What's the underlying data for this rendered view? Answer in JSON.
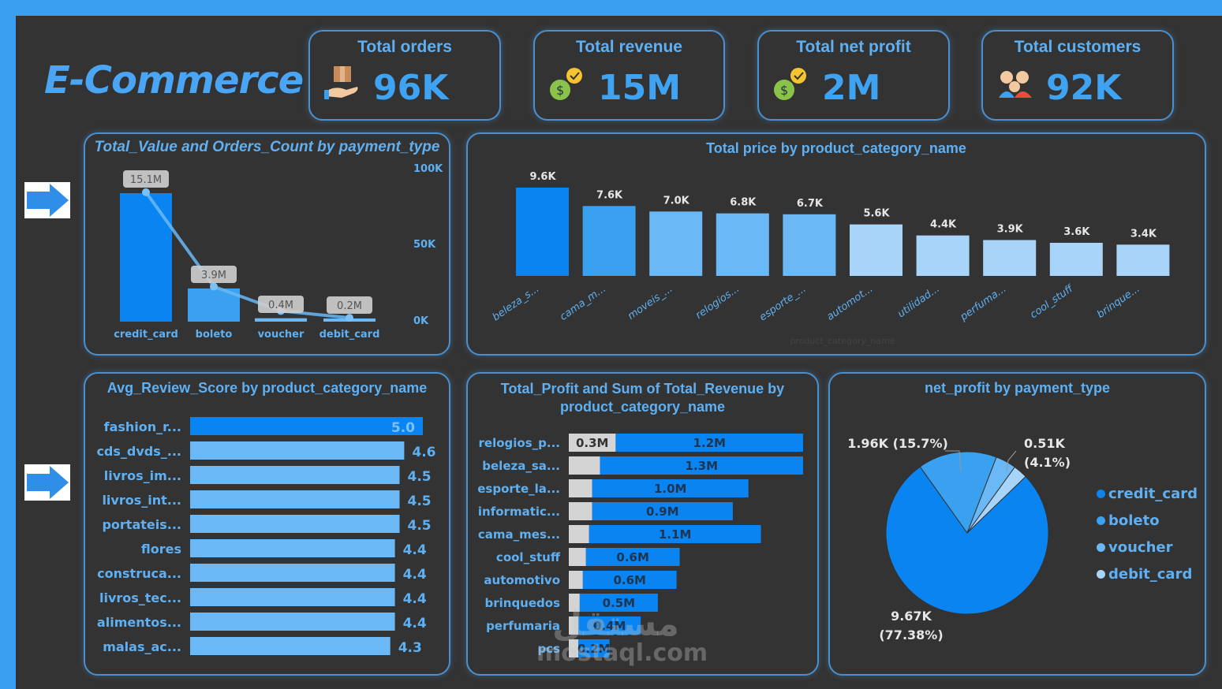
{
  "brand": "E-Commerce",
  "colors": {
    "frame": "#3a9ff0",
    "background": "#333333",
    "accent": "#0a84f0",
    "text": "#5fb0f2"
  },
  "kpis": [
    {
      "title": "Total orders",
      "value": "96K",
      "icon": "package-hand-icon"
    },
    {
      "title": "Total revenue",
      "value": "15M",
      "icon": "money-bag-icon"
    },
    {
      "title": "Total net profit",
      "value": "2M",
      "icon": "money-bag-icon"
    },
    {
      "title": "Total customers",
      "value": "92K",
      "icon": "customers-icon"
    }
  ],
  "nav_arrows": [
    "arrow-right-icon",
    "arrow-right-icon"
  ],
  "watermark": {
    "line1": "مستقل",
    "line2": "mostaql.com"
  },
  "chart_data": [
    {
      "type": "bar",
      "title": "Total_Value and Orders_Count by payment_type",
      "categories": [
        "credit_card",
        "boleto",
        "voucher",
        "debit_card"
      ],
      "series": [
        {
          "type": "bar",
          "values": [
            15.1,
            3.9,
            0.4,
            0.2
          ],
          "unit": "M",
          "labels": [
            "15.1M",
            "3.9M",
            "0.4M",
            "0.2M"
          ],
          "colors": [
            "#0a84f0",
            "#3aa0f0",
            "#6ab8f5",
            "#6ab8f5"
          ]
        },
        {
          "type": "line",
          "values": [
            84000,
            22000,
            6000,
            1500
          ],
          "axis": "right"
        }
      ],
      "y2_ticks": [
        "100K",
        "50K",
        "0K"
      ],
      "y2lim": [
        0,
        100000
      ]
    },
    {
      "type": "bar",
      "title": "Total price by product_category_name",
      "xlabel": "product_category_name",
      "categories": [
        "beleza_s...",
        "cama_m...",
        "moveis_...",
        "relogios...",
        "esporte_...",
        "automot...",
        "utilidad...",
        "perfuma...",
        "cool_stuff",
        "brinque..."
      ],
      "values": [
        9.6,
        7.6,
        7.0,
        6.8,
        6.7,
        5.6,
        4.4,
        3.9,
        3.6,
        3.4
      ],
      "labels": [
        "9.6K",
        "7.6K",
        "7.0K",
        "6.8K",
        "6.7K",
        "5.6K",
        "4.4K",
        "3.9K",
        "3.6K",
        "3.4K"
      ],
      "colors": [
        "#0a84f0",
        "#3aa0f0",
        "#6ab8f5",
        "#6ab8f5",
        "#6ab8f5",
        "#a8d4fa",
        "#a8d4fa",
        "#a8d4fa",
        "#a8d4fa",
        "#a8d4fa"
      ]
    },
    {
      "type": "bar",
      "orientation": "horizontal",
      "title": "Avg_Review_Score by product_category_name",
      "categories": [
        "fashion_r...",
        "cds_dvds_...",
        "livros_im...",
        "livros_int...",
        "portateis...",
        "flores",
        "construca...",
        "livros_tec...",
        "alimentos...",
        "malas_ac..."
      ],
      "values": [
        5.0,
        4.6,
        4.5,
        4.5,
        4.5,
        4.4,
        4.4,
        4.4,
        4.4,
        4.3
      ],
      "labels": [
        "5.0",
        "4.6",
        "4.5",
        "4.5",
        "4.5",
        "4.4",
        "4.4",
        "4.4",
        "4.4",
        "4.3"
      ]
    },
    {
      "type": "bar",
      "orientation": "horizontal",
      "stacked": true,
      "title": "Total_Profit and Sum of Total_Revenue by product_category_name",
      "categories": [
        "relogios_p...",
        "beleza_sa...",
        "esporte_la...",
        "informatic...",
        "cama_mes...",
        "cool_stuff",
        "automotivo",
        "brinquedos",
        "perfumaria",
        "pcs"
      ],
      "series": [
        {
          "values": [
            0.3,
            0.2,
            0.15,
            0.15,
            0.13,
            0.11,
            0.09,
            0.07,
            0.06,
            0.04
          ],
          "labels": [
            "0.3M",
            "",
            "",
            "",
            "",
            "",
            "",
            "",
            "",
            ""
          ],
          "color": "#d4d4d4"
        },
        {
          "values": [
            1.2,
            1.3,
            1.0,
            0.9,
            1.1,
            0.6,
            0.6,
            0.5,
            0.4,
            0.2
          ],
          "labels": [
            "1.2M",
            "1.3M",
            "1.0M",
            "0.9M",
            "1.1M",
            "0.6M",
            "0.6M",
            "0.5M",
            "0.4M",
            "0.2M"
          ],
          "color": "#0a84f0"
        }
      ]
    },
    {
      "type": "pie",
      "title": "net_profit by payment_type",
      "categories": [
        "credit_card",
        "boleto",
        "voucher",
        "debit_card"
      ],
      "values": [
        77.38,
        15.7,
        4.1,
        2.82
      ],
      "labels": [
        "9.67K\n(77.38%)",
        "1.96K (15.7%)",
        "0.51K\n(4.1%)",
        ""
      ],
      "colors": [
        "#0a84f0",
        "#3aa0f0",
        "#6ab8f5",
        "#a8d4fa"
      ],
      "legend": "right"
    }
  ]
}
